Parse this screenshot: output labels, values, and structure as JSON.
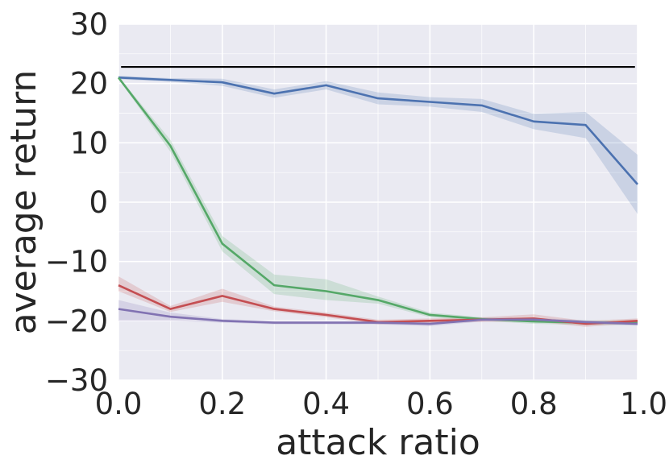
{
  "chart_data": {
    "type": "line",
    "xlabel": "attack ratio",
    "ylabel": "average return",
    "xlim": [
      0.0,
      1.0
    ],
    "ylim": [
      -30,
      30
    ],
    "xticks": [
      "0.0",
      "0.2",
      "0.4",
      "0.6",
      "0.8",
      "1.0"
    ],
    "yticks": [
      "30",
      "20",
      "10",
      "0",
      "−10",
      "−20",
      "−30"
    ],
    "grid": true,
    "background": "#eaeaf2",
    "reference_line": {
      "y": 22.8,
      "color": "#000000"
    },
    "x": [
      0.0,
      0.1,
      0.2,
      0.3,
      0.4,
      0.5,
      0.6,
      0.7,
      0.8,
      0.9,
      1.0
    ],
    "series": [
      {
        "color": "#4c72b0",
        "values": [
          21.0,
          20.6,
          20.2,
          18.3,
          19.7,
          17.5,
          16.9,
          16.3,
          13.6,
          13.0,
          3.0
        ],
        "lower": [
          20.7,
          20.3,
          19.6,
          17.6,
          19.0,
          16.5,
          16.1,
          15.2,
          12.3,
          10.8,
          -2.0
        ],
        "upper": [
          21.3,
          20.9,
          20.8,
          19.0,
          20.4,
          18.5,
          17.7,
          17.4,
          14.9,
          15.2,
          8.0
        ]
      },
      {
        "color": "#55a868",
        "values": [
          21.0,
          9.5,
          -7.0,
          -14.0,
          -15.0,
          -16.5,
          -19.0,
          -19.7,
          -20.1,
          -20.3,
          -20.3
        ],
        "lower": [
          20.8,
          8.5,
          -8.3,
          -15.5,
          -16.5,
          -17.1,
          -19.4,
          -20.0,
          -20.5,
          -20.7,
          -20.7
        ],
        "upper": [
          21.2,
          10.5,
          -5.7,
          -12.2,
          -13.0,
          -15.9,
          -18.6,
          -19.4,
          -19.7,
          -19.9,
          -19.9
        ]
      },
      {
        "color": "#c44e52",
        "values": [
          -14.0,
          -18.0,
          -15.8,
          -18.0,
          -19.0,
          -20.2,
          -20.0,
          -19.8,
          -19.6,
          -20.5,
          -20.0
        ],
        "lower": [
          -15.0,
          -18.5,
          -16.8,
          -18.4,
          -19.4,
          -20.6,
          -20.4,
          -20.2,
          -20.1,
          -21.0,
          -20.4
        ],
        "upper": [
          -12.5,
          -17.5,
          -14.6,
          -17.6,
          -18.6,
          -19.8,
          -19.6,
          -19.4,
          -18.9,
          -20.0,
          -19.6
        ]
      },
      {
        "color": "#8172b2",
        "values": [
          -18.0,
          -19.3,
          -20.0,
          -20.3,
          -20.3,
          -20.3,
          -20.5,
          -19.8,
          -19.8,
          -20.2,
          -20.5
        ],
        "lower": [
          -20.0,
          -20.0,
          -20.3,
          -20.6,
          -20.6,
          -20.6,
          -20.9,
          -20.1,
          -20.1,
          -20.5,
          -20.8
        ],
        "upper": [
          -16.5,
          -18.6,
          -19.7,
          -20.0,
          -20.0,
          -20.0,
          -20.1,
          -19.5,
          -19.5,
          -19.9,
          -20.2
        ]
      }
    ]
  }
}
